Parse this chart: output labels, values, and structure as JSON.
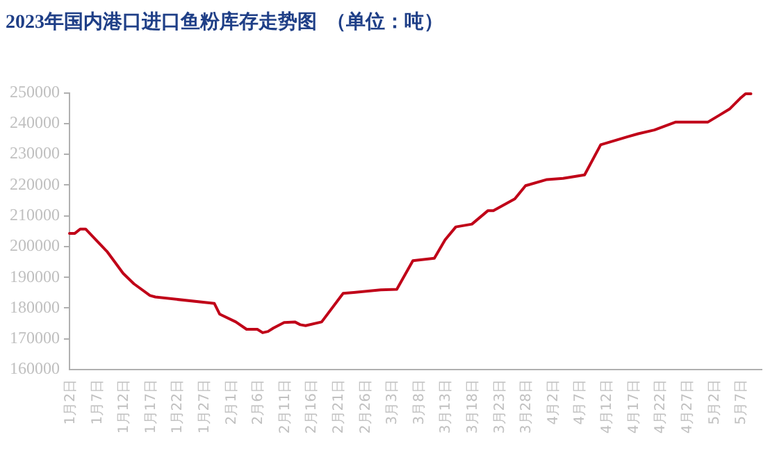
{
  "chart_data": {
    "type": "line",
    "title": "2023年国内港口进口鱼粉库存走势图  （单位：吨）",
    "x": [
      "--01-02",
      "--01-03",
      "--01-04",
      "--01-05",
      "--01-09",
      "--01-12",
      "--01-14",
      "--01-17",
      "--01-18",
      "--01-29",
      "--01-30",
      "--02-02",
      "--02-04",
      "--02-06",
      "--02-07",
      "--02-08",
      "--02-09",
      "--02-11",
      "--02-13",
      "--02-14",
      "--02-15",
      "--02-18",
      "--02-22",
      "--02-24",
      "--02-27",
      "--03-01",
      "--03-04",
      "--03-07",
      "--03-11",
      "--03-13",
      "--03-15",
      "--03-18",
      "--03-21",
      "--03-22",
      "--03-26",
      "--03-28",
      "--04-01",
      "--04-04",
      "--04-08",
      "--04-11",
      "--04-16",
      "--04-18",
      "--04-21",
      "--04-25",
      "--05-01",
      "--05-03",
      "--05-05",
      "--05-07",
      "--05-08",
      "--05-09"
    ],
    "series": [
      {
        "color": "#c00018",
        "values": [
          204300,
          204300,
          205700,
          205700,
          198400,
          191300,
          187900,
          184100,
          183600,
          181500,
          178000,
          175500,
          173100,
          173100,
          172000,
          172400,
          173500,
          175300,
          175500,
          174600,
          174300,
          175500,
          184800,
          185100,
          185600,
          185900,
          186100,
          195400,
          196200,
          202200,
          206400,
          207300,
          211700,
          211700,
          215500,
          219800,
          221800,
          222200,
          223300,
          233100,
          235700,
          236700,
          237900,
          240500,
          240500,
          242600,
          244700,
          248200,
          249700,
          249700
        ]
      }
    ],
    "xlim": [
      "--01-02",
      "--05-11"
    ],
    "xticks": [
      {
        "value": "--01-02",
        "label": "1月2日"
      },
      {
        "value": "--01-07",
        "label": "1月7日"
      },
      {
        "value": "--01-12",
        "label": "1月12日"
      },
      {
        "value": "--01-17",
        "label": "1月17日"
      },
      {
        "value": "--01-22",
        "label": "1月22日"
      },
      {
        "value": "--01-27",
        "label": "1月27日"
      },
      {
        "value": "--02-01",
        "label": "2月1日"
      },
      {
        "value": "--02-06",
        "label": "2月6日"
      },
      {
        "value": "--02-11",
        "label": "2月11日"
      },
      {
        "value": "--02-16",
        "label": "2月16日"
      },
      {
        "value": "--02-21",
        "label": "2月21日"
      },
      {
        "value": "--02-26",
        "label": "2月26日"
      },
      {
        "value": "--03-03",
        "label": "3月3日"
      },
      {
        "value": "--03-08",
        "label": "3月8日"
      },
      {
        "value": "--03-13",
        "label": "3月13日"
      },
      {
        "value": "--03-18",
        "label": "3月18日"
      },
      {
        "value": "--03-23",
        "label": "3月23日"
      },
      {
        "value": "--03-28",
        "label": "3月28日"
      },
      {
        "value": "--04-02",
        "label": "4月2日"
      },
      {
        "value": "--04-07",
        "label": "4月7日"
      },
      {
        "value": "--04-12",
        "label": "4月12日"
      },
      {
        "value": "--04-17",
        "label": "4月17日"
      },
      {
        "value": "--04-22",
        "label": "4月22日"
      },
      {
        "value": "--04-27",
        "label": "4月27日"
      },
      {
        "value": "--05-02",
        "label": "5月2日"
      },
      {
        "value": "--05-07",
        "label": "5月7日"
      }
    ],
    "ylim": [
      160000,
      250000
    ],
    "yticks": [
      160000,
      170000,
      180000,
      190000,
      200000,
      210000,
      220000,
      230000,
      240000,
      250000
    ],
    "grid": false,
    "legend": false,
    "marker": "none",
    "line_style": "solid"
  }
}
